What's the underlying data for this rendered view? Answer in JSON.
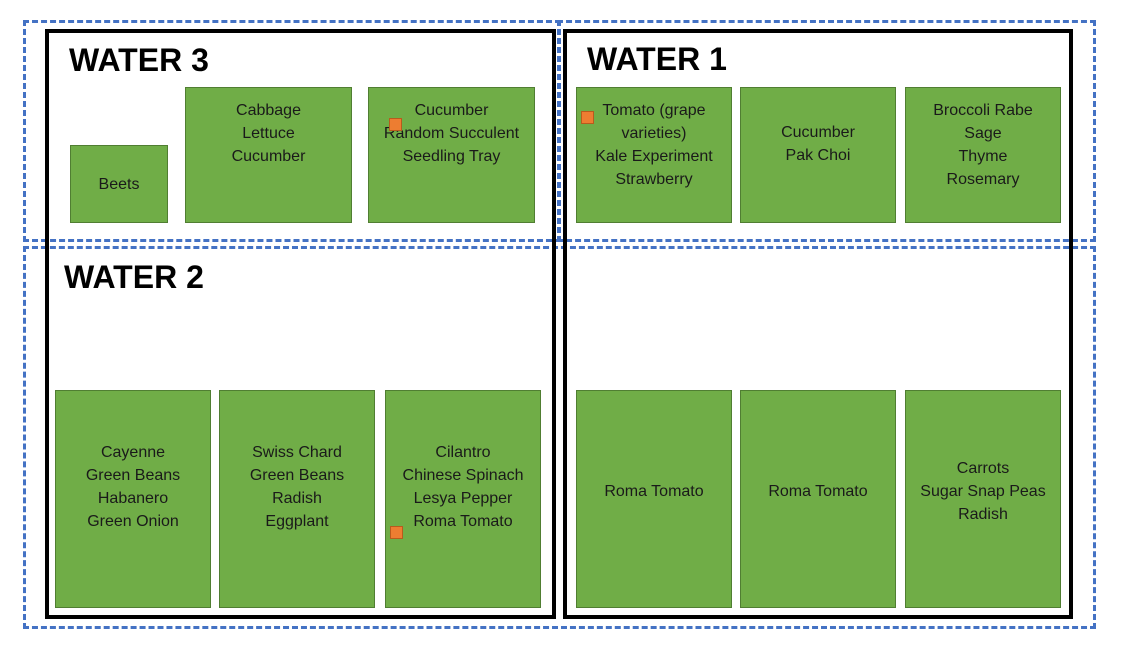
{
  "zones": [
    {
      "id": "water-3",
      "title": "WATER 3"
    },
    {
      "id": "water-1",
      "title": "WATER 1"
    },
    {
      "id": "water-2",
      "title": "WATER 2"
    }
  ],
  "plots": {
    "beets": [
      "Beets"
    ],
    "cabbage": [
      "Cabbage",
      "Lettuce",
      "Cucumber"
    ],
    "cucumber_tray": [
      "Cucumber",
      "Random Succulent",
      "Seedling Tray"
    ],
    "tomato_grape": [
      "Tomato (grape",
      "varieties)",
      "Kale Experiment",
      "Strawberry"
    ],
    "cucumber_pakchoi": [
      "Cucumber",
      "Pak Choi"
    ],
    "broccoli": [
      "Broccoli Rabe",
      "Sage",
      "Thyme",
      "Rosemary"
    ],
    "cayenne": [
      "Cayenne",
      "Green Beans",
      "Habanero",
      "Green Onion"
    ],
    "swiss_chard": [
      "Swiss Chard",
      "Green Beans",
      "Radish",
      "Eggplant"
    ],
    "cilantro": [
      "Cilantro",
      "Chinese Spinach",
      "Lesya Pepper",
      "Roma Tomato"
    ],
    "roma1": [
      "Roma Tomato"
    ],
    "roma2": [
      "Roma Tomato"
    ],
    "carrots": [
      "Carrots",
      "Sugar Snap Peas",
      "Radish"
    ]
  },
  "colors": {
    "zone_border": "#4472c4",
    "bed_border": "#000000",
    "plot_fill": "#70ad47",
    "marker_fill": "#ed7d31"
  }
}
